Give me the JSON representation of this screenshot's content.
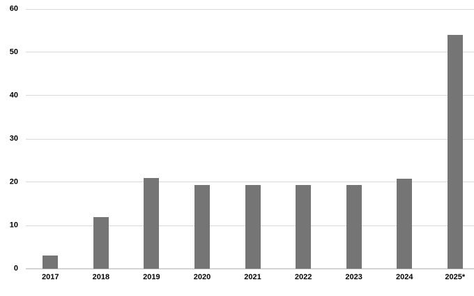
{
  "chart_data": {
    "type": "bar",
    "title": "",
    "xlabel": "",
    "ylabel": "",
    "categories": [
      "2017",
      "2018",
      "2019",
      "2020",
      "2021",
      "2022",
      "2023",
      "2024",
      "2025*"
    ],
    "values": [
      3,
      12,
      21,
      19.4,
      19.3,
      19.3,
      19.3,
      20.8,
      54
    ],
    "ylim": [
      0,
      60
    ],
    "yticks": [
      0,
      10,
      20,
      30,
      40,
      50,
      60
    ],
    "grid": true,
    "legend_position": "none",
    "colors": {
      "bar": "#757575",
      "gridline": "#d9d9d9",
      "baseline": "#d4d4d4",
      "label": "#000000",
      "background": "#ffffff"
    }
  }
}
